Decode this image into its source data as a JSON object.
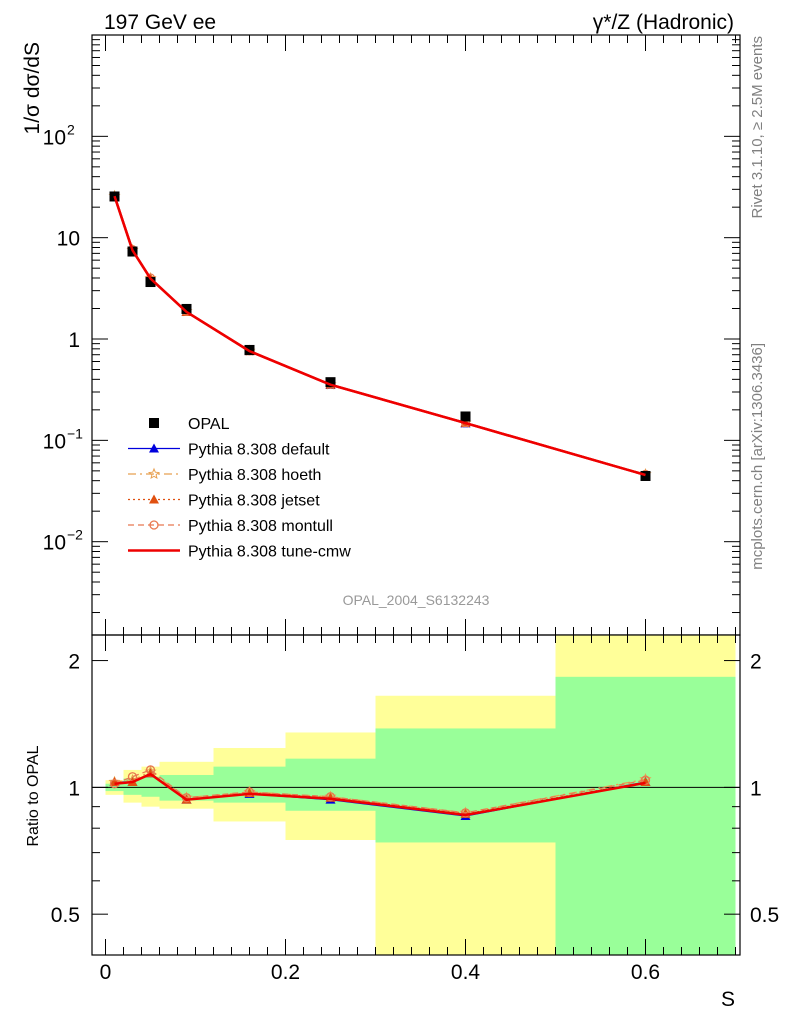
{
  "header": {
    "left_title": "197 GeV ee",
    "right_title": "γ*/Z (Hadronic)"
  },
  "side_labels": {
    "rivet": "Rivet 3.1.10, ≥ 2.5M events",
    "mcplots": "mcplots.cern.ch [arXiv:1306.3436]"
  },
  "watermark": "OPAL_2004_S6132243",
  "chart_data": [
    {
      "type": "line",
      "panel": "main",
      "ylabel": "1/σ dσ/dS",
      "yscale": "log",
      "ylim": [
        0.0012,
        1000
      ],
      "xlim": [
        -0.015,
        0.705
      ],
      "y_ticks": [
        {
          "value": 0.01,
          "mantissa": "10",
          "exponent": "−2"
        },
        {
          "value": 0.1,
          "mantissa": "10",
          "exponent": "−1"
        },
        {
          "value": 1,
          "mantissa": "1",
          "exponent": ""
        },
        {
          "value": 10,
          "mantissa": "10",
          "exponent": ""
        },
        {
          "value": 100,
          "mantissa": "10",
          "exponent": "2"
        }
      ],
      "legend_position": "lower-left",
      "x": [
        0.01,
        0.03,
        0.05,
        0.09,
        0.16,
        0.25,
        0.4,
        0.6
      ],
      "series": [
        {
          "name": "OPAL",
          "style": "data",
          "color": "#000000",
          "marker": "square",
          "values": [
            25.5,
            7.3,
            3.65,
            1.98,
            0.78,
            0.375,
            0.172,
            0.0445
          ]
        },
        {
          "name": "Pythia 8.308 default",
          "style": "solid",
          "color": "#0000dd",
          "marker": "triangle",
          "values": [
            25.8,
            7.5,
            3.95,
            1.85,
            0.76,
            0.352,
            0.147,
            0.0458
          ]
        },
        {
          "name": "Pythia 8.308 hoeth",
          "style": "dashdot",
          "color": "#e8a050",
          "marker": "star",
          "values": [
            25.8,
            7.55,
            3.98,
            1.88,
            0.765,
            0.356,
            0.149,
            0.0462
          ]
        },
        {
          "name": "Pythia 8.308 jetset",
          "style": "dotted",
          "color": "#e05010",
          "marker": "triangle",
          "values": [
            25.8,
            7.5,
            3.95,
            1.85,
            0.76,
            0.355,
            0.149,
            0.0458
          ]
        },
        {
          "name": "Pythia 8.308 montull",
          "style": "dashed",
          "color": "#e87850",
          "marker": "circle-open",
          "values": [
            25.7,
            7.62,
            4.0,
            1.88,
            0.764,
            0.357,
            0.15,
            0.0461
          ]
        },
        {
          "name": "Pythia 8.308 tune-cmw",
          "style": "solid-thick",
          "color": "#ee0000",
          "marker": "",
          "values": [
            25.7,
            7.5,
            3.95,
            1.85,
            0.76,
            0.354,
            0.148,
            0.0455
          ]
        }
      ]
    },
    {
      "type": "line",
      "panel": "ratio",
      "ylabel": "Ratio to OPAL",
      "xlabel": "S",
      "yscale": "log",
      "ylim": [
        0.4,
        2.3
      ],
      "xlim": [
        -0.015,
        0.705
      ],
      "y_ticks": [
        0.5,
        1,
        2
      ],
      "x_ticks": [
        0,
        0.2,
        0.4,
        0.6
      ],
      "x_tick_labels": [
        "0",
        "0.2",
        "0.4",
        "0.6"
      ],
      "bands": [
        {
          "x_low": 0.0,
          "x_high": 0.02,
          "inner": [
            0.98,
            1.02
          ],
          "outer": [
            0.96,
            1.04
          ]
        },
        {
          "x_low": 0.02,
          "x_high": 0.04,
          "inner": [
            0.96,
            1.05
          ],
          "outer": [
            0.92,
            1.1
          ]
        },
        {
          "x_low": 0.04,
          "x_high": 0.06,
          "inner": [
            0.95,
            1.06
          ],
          "outer": [
            0.9,
            1.12
          ]
        },
        {
          "x_low": 0.06,
          "x_high": 0.12,
          "inner": [
            0.93,
            1.07
          ],
          "outer": [
            0.89,
            1.15
          ]
        },
        {
          "x_low": 0.12,
          "x_high": 0.2,
          "inner": [
            0.92,
            1.12
          ],
          "outer": [
            0.83,
            1.24
          ]
        },
        {
          "x_low": 0.2,
          "x_high": 0.3,
          "inner": [
            0.88,
            1.17
          ],
          "outer": [
            0.75,
            1.35
          ]
        },
        {
          "x_low": 0.3,
          "x_high": 0.5,
          "inner": [
            0.74,
            1.38
          ],
          "outer": [
            0.4,
            1.65
          ]
        },
        {
          "x_low": 0.5,
          "x_high": 0.7,
          "inner": [
            0.4,
            1.83
          ],
          "outer": [
            0.4,
            2.3
          ]
        }
      ],
      "x": [
        0.01,
        0.03,
        0.05,
        0.09,
        0.16,
        0.25,
        0.4,
        0.6
      ],
      "series": [
        {
          "name": "Pythia 8.308 default",
          "color": "#0000dd",
          "style": "solid",
          "marker": "triangle",
          "values": [
            1.03,
            1.03,
            1.08,
            0.935,
            0.965,
            0.935,
            0.855,
            1.03
          ]
        },
        {
          "name": "Pythia 8.308 hoeth",
          "color": "#e8a050",
          "style": "dashdot",
          "marker": "star",
          "values": [
            1.03,
            1.04,
            1.09,
            0.945,
            0.975,
            0.95,
            0.87,
            1.045
          ]
        },
        {
          "name": "Pythia 8.308 jetset",
          "color": "#e05010",
          "style": "dotted",
          "marker": "triangle",
          "values": [
            1.03,
            1.03,
            1.08,
            0.935,
            0.97,
            0.945,
            0.865,
            1.03
          ]
        },
        {
          "name": "Pythia 8.308 montull",
          "color": "#e87850",
          "style": "dashed",
          "marker": "circle-open",
          "values": [
            1.02,
            1.06,
            1.1,
            0.945,
            0.975,
            0.95,
            0.87,
            1.04
          ]
        },
        {
          "name": "Pythia 8.308 tune-cmw",
          "color": "#ee0000",
          "style": "solid-thick",
          "marker": "",
          "values": [
            1.02,
            1.03,
            1.075,
            0.935,
            0.965,
            0.94,
            0.86,
            1.025
          ]
        }
      ]
    }
  ]
}
